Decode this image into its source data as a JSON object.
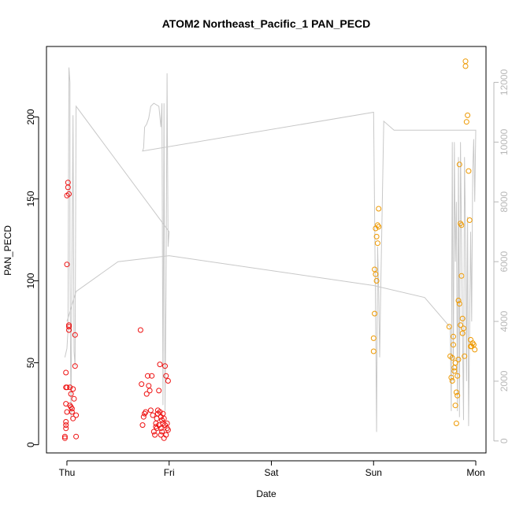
{
  "chart_data": {
    "type": "scatter",
    "title": "ATOM2 Northeast_Pacific_1 PAN_PECD",
    "xlabel": "Date",
    "ylabel": "PAN_PECD",
    "x_unit": "days since Thursday 00:00",
    "xlim": [
      -0.2,
      4.1
    ],
    "ylim": [
      -5,
      243
    ],
    "y2lim": [
      -400,
      13200
    ],
    "x_ticks": [
      {
        "label": "Thu",
        "value": 0
      },
      {
        "label": "Fri",
        "value": 1
      },
      {
        "label": "Sat",
        "value": 2
      },
      {
        "label": "Sun",
        "value": 3
      },
      {
        "label": "Mon",
        "value": 4
      }
    ],
    "y_ticks": [
      0,
      50,
      100,
      150,
      200
    ],
    "y2_ticks": [
      0,
      2000,
      4000,
      6000,
      8000,
      10000,
      12000
    ],
    "colors": {
      "early": "#ee1111",
      "late": "#ee9900",
      "line": "#c8c8c8",
      "axis": "#000000",
      "right_axis": "#b8b8b8"
    },
    "series": [
      {
        "color": "#ee1111",
        "points": [
          [
            -0.02,
            5
          ],
          [
            -0.02,
            4
          ],
          [
            -0.01,
            12
          ],
          [
            -0.01,
            14
          ],
          [
            -0.01,
            25
          ],
          [
            -0.01,
            35
          ],
          [
            -0.01,
            44
          ],
          [
            -0.01,
            10
          ],
          [
            0.0,
            20
          ],
          [
            0.0,
            35
          ],
          [
            0.0,
            110
          ],
          [
            0.0,
            152
          ],
          [
            0.01,
            160
          ],
          [
            0.01,
            157
          ],
          [
            0.02,
            153
          ],
          [
            0.02,
            72
          ],
          [
            0.02,
            73
          ],
          [
            0.02,
            70
          ],
          [
            0.03,
            24
          ],
          [
            0.03,
            35
          ],
          [
            0.04,
            31
          ],
          [
            0.04,
            23
          ],
          [
            0.05,
            22
          ],
          [
            0.05,
            20
          ],
          [
            0.06,
            34
          ],
          [
            0.06,
            16
          ],
          [
            0.07,
            28
          ],
          [
            0.08,
            48
          ],
          [
            0.08,
            67
          ],
          [
            0.09,
            18
          ],
          [
            0.09,
            5
          ],
          [
            0.72,
            70
          ],
          [
            0.73,
            37
          ],
          [
            0.74,
            12
          ],
          [
            0.75,
            17
          ],
          [
            0.76,
            19
          ],
          [
            0.77,
            20
          ],
          [
            0.78,
            31
          ],
          [
            0.79,
            42
          ],
          [
            0.8,
            36
          ],
          [
            0.81,
            33
          ],
          [
            0.82,
            21
          ],
          [
            0.83,
            42
          ],
          [
            0.84,
            18
          ],
          [
            0.85,
            8
          ],
          [
            0.86,
            6
          ],
          [
            0.87,
            13
          ],
          [
            0.87,
            11
          ],
          [
            0.88,
            10
          ],
          [
            0.88,
            16
          ],
          [
            0.89,
            21
          ],
          [
            0.89,
            19
          ],
          [
            0.9,
            12
          ],
          [
            0.9,
            33
          ],
          [
            0.91,
            20
          ],
          [
            0.91,
            49
          ],
          [
            0.92,
            17
          ],
          [
            0.92,
            10
          ],
          [
            0.92,
            6
          ],
          [
            0.93,
            15
          ],
          [
            0.93,
            8
          ],
          [
            0.94,
            13
          ],
          [
            0.94,
            19
          ],
          [
            0.95,
            16
          ],
          [
            0.95,
            4
          ],
          [
            0.96,
            12
          ],
          [
            0.96,
            48
          ],
          [
            0.97,
            42
          ],
          [
            0.97,
            6
          ],
          [
            0.98,
            10
          ],
          [
            0.98,
            13
          ],
          [
            0.99,
            39
          ],
          [
            0.99,
            9
          ]
        ]
      },
      {
        "color": "#ee9900",
        "points": [
          [
            3.0,
            57
          ],
          [
            3.0,
            65
          ],
          [
            3.01,
            80
          ],
          [
            3.01,
            107
          ],
          [
            3.02,
            132
          ],
          [
            3.02,
            104
          ],
          [
            3.03,
            100
          ],
          [
            3.03,
            127
          ],
          [
            3.04,
            134
          ],
          [
            3.04,
            123
          ],
          [
            3.05,
            144
          ],
          [
            3.05,
            133
          ],
          [
            3.74,
            72
          ],
          [
            3.75,
            54
          ],
          [
            3.76,
            41
          ],
          [
            3.77,
            53
          ],
          [
            3.77,
            39
          ],
          [
            3.78,
            61
          ],
          [
            3.78,
            66
          ],
          [
            3.79,
            47
          ],
          [
            3.79,
            45
          ],
          [
            3.8,
            50
          ],
          [
            3.8,
            24
          ],
          [
            3.81,
            13
          ],
          [
            3.81,
            32
          ],
          [
            3.82,
            30
          ],
          [
            3.82,
            42
          ],
          [
            3.83,
            88
          ],
          [
            3.83,
            52
          ],
          [
            3.84,
            171
          ],
          [
            3.84,
            86
          ],
          [
            3.85,
            135
          ],
          [
            3.85,
            73
          ],
          [
            3.86,
            134
          ],
          [
            3.86,
            103
          ],
          [
            3.87,
            77
          ],
          [
            3.87,
            68
          ],
          [
            3.88,
            71
          ],
          [
            3.89,
            54
          ],
          [
            3.9,
            231
          ],
          [
            3.9,
            234
          ],
          [
            3.91,
            197
          ],
          [
            3.92,
            201
          ],
          [
            3.93,
            167
          ],
          [
            3.94,
            137
          ],
          [
            3.95,
            64
          ],
          [
            3.95,
            60
          ],
          [
            3.96,
            60
          ],
          [
            3.97,
            62
          ],
          [
            3.98,
            61
          ],
          [
            3.99,
            58
          ]
        ]
      }
    ],
    "right_axis_line": [
      [
        -0.02,
        2800
      ],
      [
        0.0,
        3100
      ],
      [
        0.01,
        3700
      ],
      [
        0.02,
        12500
      ],
      [
        0.03,
        12000
      ],
      [
        0.03,
        6000
      ],
      [
        0.04,
        700
      ],
      [
        0.05,
        6000
      ],
      [
        0.06,
        10900
      ],
      [
        0.07,
        3000
      ],
      [
        0.08,
        2500
      ],
      [
        0.09,
        11200
      ],
      [
        1.0,
        7000
      ],
      [
        0.99,
        6500
      ],
      [
        0.98,
        12300
      ],
      [
        0.97,
        5000
      ],
      [
        0.96,
        1000
      ],
      [
        0.95,
        11300
      ],
      [
        0.94,
        1200
      ],
      [
        0.93,
        11300
      ],
      [
        0.92,
        10500
      ],
      [
        0.9,
        11200
      ],
      [
        0.85,
        11300
      ],
      [
        0.82,
        11200
      ],
      [
        0.8,
        10800
      ],
      [
        0.78,
        10600
      ],
      [
        0.76,
        10500
      ],
      [
        0.75,
        9800
      ],
      [
        0.74,
        9700
      ],
      [
        3.0,
        11000
      ],
      [
        3.02,
        4000
      ],
      [
        3.03,
        300
      ],
      [
        3.04,
        6500
      ],
      [
        3.05,
        5000
      ],
      [
        3.06,
        2800
      ],
      [
        3.07,
        5000
      ],
      [
        3.1,
        10700
      ],
      [
        3.2,
        10400
      ],
      [
        4.0,
        10400
      ],
      [
        3.99,
        8000
      ],
      [
        3.98,
        10100
      ],
      [
        3.97,
        9000
      ],
      [
        3.96,
        4000
      ],
      [
        3.95,
        7000
      ],
      [
        3.93,
        500
      ],
      [
        3.92,
        7500
      ],
      [
        3.91,
        2000
      ],
      [
        3.9,
        7000
      ],
      [
        3.89,
        9500
      ],
      [
        3.88,
        700
      ],
      [
        3.87,
        3500
      ],
      [
        3.86,
        6800
      ],
      [
        3.85,
        10000
      ],
      [
        3.84,
        800
      ],
      [
        3.83,
        9500
      ],
      [
        3.82,
        1000
      ],
      [
        3.81,
        8000
      ],
      [
        3.8,
        6000
      ],
      [
        3.79,
        10000
      ],
      [
        3.78,
        2000
      ],
      [
        3.77,
        10000
      ],
      [
        3.76,
        1000
      ],
      [
        3.75,
        3800
      ],
      [
        3.5,
        4800
      ],
      [
        3.0,
        5200
      ],
      [
        1.0,
        6200
      ],
      [
        0.5,
        6000
      ],
      [
        0.09,
        5000
      ],
      [
        0.0,
        4000
      ]
    ]
  }
}
